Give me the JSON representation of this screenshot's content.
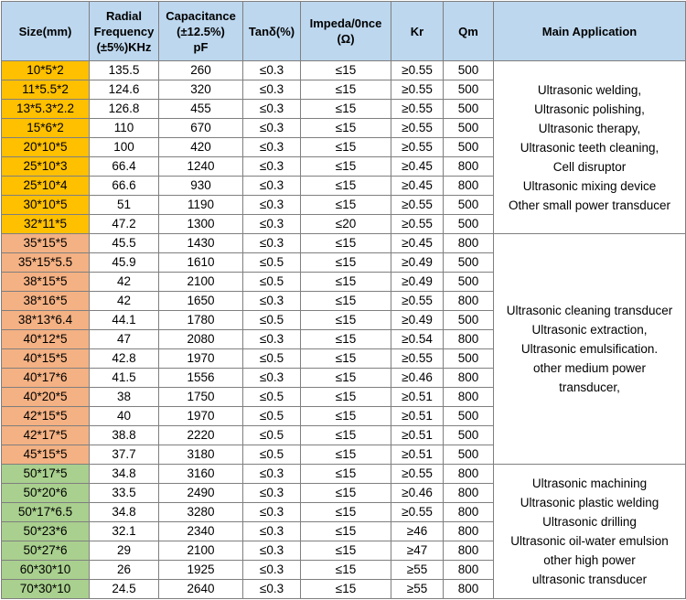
{
  "table": {
    "header": [
      [
        "Size(mm)"
      ],
      [
        "Radial",
        "Frequency",
        "(±5%)KHz"
      ],
      [
        "Capacitance",
        "(±12.5%)",
        "pF"
      ],
      [
        "Tanδ(%)"
      ],
      [
        "Impeda/0nce",
        "(Ω)"
      ],
      [
        "Kr"
      ],
      [
        "Qm"
      ],
      [
        "Main Application"
      ]
    ],
    "groups": [
      {
        "color": "#ffc000",
        "rows": [
          [
            "10*5*2",
            "135.5",
            "260",
            "≤0.3",
            "≤15",
            "≥0.55",
            "500"
          ],
          [
            "11*5.5*2",
            "124.6",
            "320",
            "≤0.3",
            "≤15",
            "≥0.55",
            "500"
          ],
          [
            "13*5.3*2.2",
            "126.8",
            "455",
            "≤0.3",
            "≤15",
            "≥0.55",
            "500"
          ],
          [
            "15*6*2",
            "110",
            "670",
            "≤0.3",
            "≤15",
            "≥0.55",
            "500"
          ],
          [
            "20*10*5",
            "100",
            "420",
            "≤0.3",
            "≤15",
            "≥0.55",
            "500"
          ],
          [
            "25*10*3",
            "66.4",
            "1240",
            "≤0.3",
            "≤15",
            "≥0.45",
            "800"
          ],
          [
            "25*10*4",
            "66.6",
            "930",
            "≤0.3",
            "≤15",
            "≥0.45",
            "800"
          ],
          [
            "30*10*5",
            "51",
            "1190",
            "≤0.3",
            "≤15",
            "≥0.55",
            "500"
          ],
          [
            "32*11*5",
            "47.2",
            "1300",
            "≤0.3",
            "≤20",
            "≥0.55",
            "500"
          ]
        ],
        "application": [
          "Ultrasonic welding,",
          "Ultrasonic polishing,",
          "Ultrasonic therapy,",
          "Ultrasonic teeth cleaning,",
          "Cell disruptor",
          "Ultrasonic mixing device",
          "Other small power transducer"
        ]
      },
      {
        "color": "#f4b183",
        "rows": [
          [
            "35*15*5",
            "45.5",
            "1430",
            "≤0.3",
            "≤15",
            "≥0.45",
            "800"
          ],
          [
            "35*15*5.5",
            "45.9",
            "1610",
            "≤0.5",
            "≤15",
            "≥0.49",
            "500"
          ],
          [
            "38*15*5",
            "42",
            "2100",
            "≤0.5",
            "≤15",
            "≥0.49",
            "500"
          ],
          [
            "38*16*5",
            "42",
            "1650",
            "≤0.3",
            "≤15",
            "≥0.55",
            "800"
          ],
          [
            "38*13*6.4",
            "44.1",
            "1780",
            "≤0.5",
            "≤15",
            "≥0.49",
            "500"
          ],
          [
            "40*12*5",
            "47",
            "2080",
            "≤0.3",
            "≤15",
            "≥0.54",
            "800"
          ],
          [
            "40*15*5",
            "42.8",
            "1970",
            "≤0.5",
            "≤15",
            "≥0.55",
            "500"
          ],
          [
            "40*17*6",
            "41.5",
            "1556",
            "≤0.3",
            "≤15",
            "≥0.46",
            "800"
          ],
          [
            "40*20*5",
            "38",
            "1750",
            "≤0.5",
            "≤15",
            "≥0.51",
            "800"
          ],
          [
            "42*15*5",
            "40",
            "1970",
            "≤0.5",
            "≤15",
            "≥0.51",
            "500"
          ],
          [
            "42*17*5",
            "38.8",
            "2220",
            "≤0.5",
            "≤15",
            "≥0.51",
            "500"
          ],
          [
            "45*15*5",
            "37.7",
            "3180",
            "≤0.5",
            "≤15",
            "≥0.51",
            "500"
          ]
        ],
        "application": [
          "Ultrasonic cleaning transducer",
          "Ultrasonic extraction,",
          "Ultrasonic emulsification.",
          "other medium power",
          "transducer,"
        ]
      },
      {
        "color": "#a9d08e",
        "rows": [
          [
            "50*17*5",
            "34.8",
            "3160",
            "≤0.3",
            "≤15",
            "≥0.55",
            "800"
          ],
          [
            "50*20*6",
            "33.5",
            "2490",
            "≤0.3",
            "≤15",
            "≥0.46",
            "800"
          ],
          [
            "50*17*6.5",
            "34.8",
            "3280",
            "≤0.3",
            "≤15",
            "≥0.55",
            "800"
          ],
          [
            "50*23*6",
            "32.1",
            "2340",
            "≤0.3",
            "≤15",
            "≥46",
            "800"
          ],
          [
            "50*27*6",
            "29",
            "2100",
            "≤0.3",
            "≤15",
            "≥47",
            "800"
          ],
          [
            "60*30*10",
            "26",
            "1925",
            "≤0.3",
            "≤15",
            "≥55",
            "800"
          ],
          [
            "70*30*10",
            "24.5",
            "2640",
            "≤0.3",
            "≤15",
            "≥55",
            "800"
          ]
        ],
        "application": [
          "Ultrasonic machining",
          "Ultrasonic plastic welding",
          "Ultrasonic drilling",
          "Ultrasonic oil-water emulsion",
          "other high power",
          "ultrasonic transducer"
        ]
      }
    ]
  }
}
